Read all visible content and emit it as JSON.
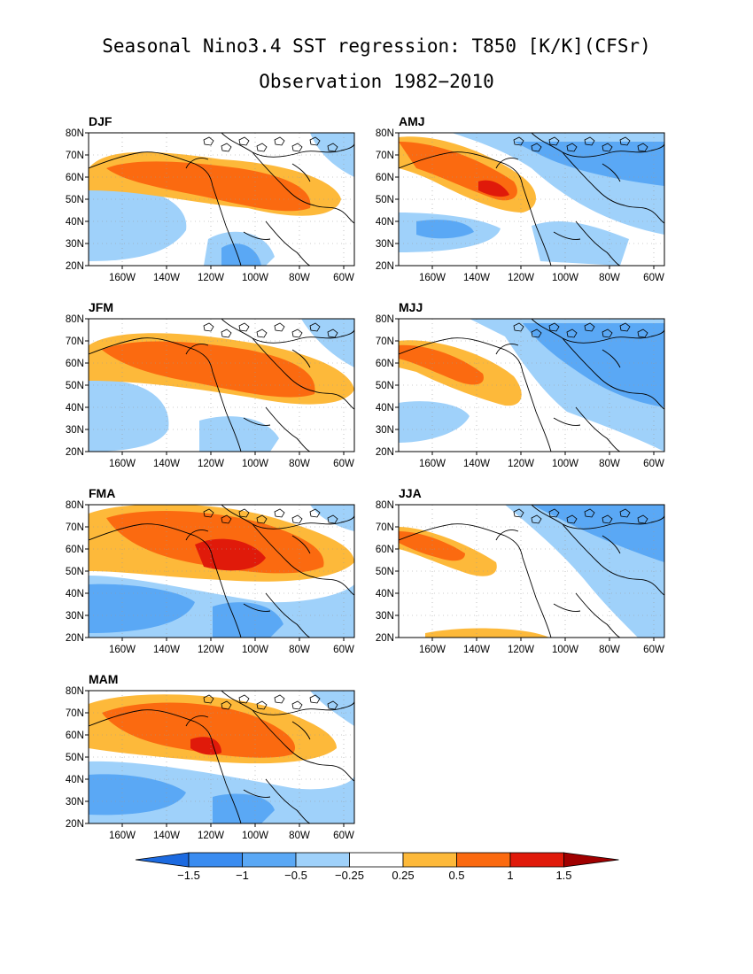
{
  "title": "Seasonal Nino3.4 SST regression: T850 [K/K](CFSr)",
  "subtitle": "Observation 1982−2010",
  "lat_ticks": [
    "80N",
    "70N",
    "60N",
    "50N",
    "40N",
    "30N",
    "20N"
  ],
  "lon_ticks": [
    "160W",
    "140W",
    "120W",
    "100W",
    "80W",
    "60W"
  ],
  "colorbar": {
    "labels": [
      "−1.5",
      "−1",
      "−0.5",
      "−0.25",
      "0.25",
      "0.5",
      "1",
      "1.5"
    ],
    "colors": [
      "#1c6ae0",
      "#3a8cf0",
      "#5aa8f5",
      "#9fd1fa",
      "#ffffff",
      "#fdb93a",
      "#fb6a10",
      "#e01a0a",
      "#a00000"
    ]
  },
  "panels": [
    {
      "label": "DJF"
    },
    {
      "label": "AMJ"
    },
    {
      "label": "JFM"
    },
    {
      "label": "MJJ"
    },
    {
      "label": "FMA"
    },
    {
      "label": "JJA"
    },
    {
      "label": "MAM"
    }
  ]
}
